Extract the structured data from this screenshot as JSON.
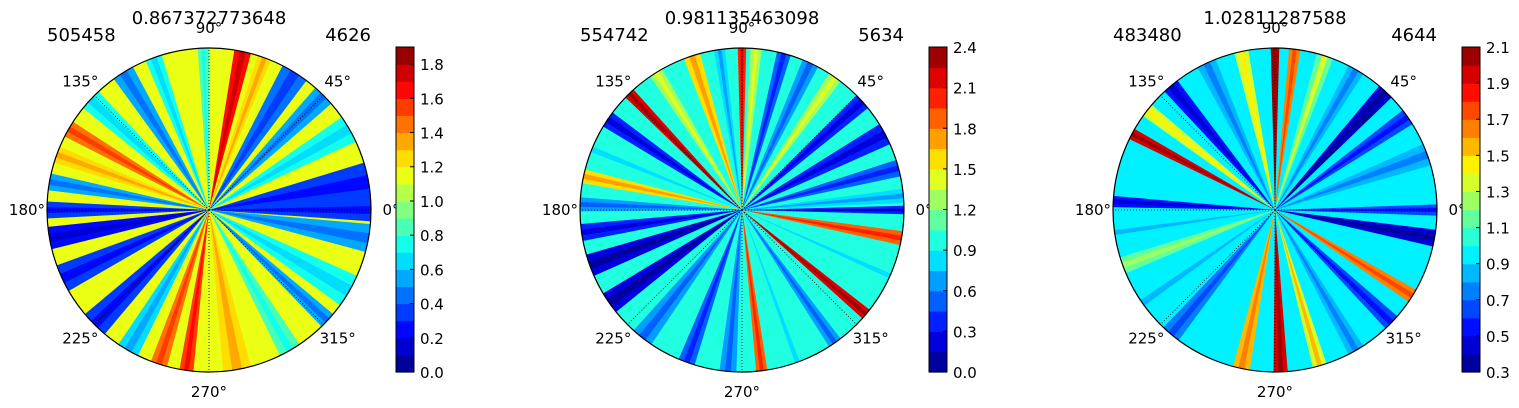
{
  "chart_data": [
    {
      "type": "polar-contour",
      "title": "0.867372773648",
      "left_label": "505458",
      "right_label": "4626",
      "angle_ticks": [
        "0°",
        "45°",
        "90°",
        "135°",
        "180°",
        "225°",
        "270°",
        "315°"
      ],
      "colorbar": {
        "ticks": [
          "0.0",
          "0.2",
          "0.4",
          "0.6",
          "0.8",
          "1.0",
          "1.2",
          "1.4",
          "1.6",
          "1.8"
        ],
        "range": [
          0.0,
          1.9
        ],
        "levels": 19
      },
      "background_value": 1.1,
      "rays": [
        {
          "angle": 92,
          "width": 4,
          "value": 0.8
        },
        {
          "angle": 78,
          "width": 6,
          "value": 1.6
        },
        {
          "angle": 70,
          "width": 5,
          "value": 1.2
        },
        {
          "angle": 58,
          "width": 10,
          "value": 0.45
        },
        {
          "angle": 45,
          "width": 8,
          "value": 0.55
        },
        {
          "angle": 30,
          "width": 10,
          "value": 0.75
        },
        {
          "angle": 10,
          "width": 14,
          "value": 0.3
        },
        {
          "angle": 0,
          "width": 8,
          "value": 0.3
        },
        {
          "angle": 350,
          "width": 10,
          "value": 0.5
        },
        {
          "angle": 330,
          "width": 12,
          "value": 0.7
        },
        {
          "angle": 317,
          "width": 6,
          "value": 0.5
        },
        {
          "angle": 300,
          "width": 8,
          "value": 0.85
        },
        {
          "angle": 280,
          "width": 10,
          "value": 1.2
        },
        {
          "angle": 262,
          "width": 5,
          "value": 1.55
        },
        {
          "angle": 252,
          "width": 6,
          "value": 1.4
        },
        {
          "angle": 240,
          "width": 8,
          "value": 0.6
        },
        {
          "angle": 225,
          "width": 10,
          "value": 0.35
        },
        {
          "angle": 205,
          "width": 10,
          "value": 0.35
        },
        {
          "angle": 190,
          "width": 8,
          "value": 0.25
        },
        {
          "angle": 180,
          "width": 6,
          "value": 0.3
        },
        {
          "angle": 170,
          "width": 6,
          "value": 0.55
        },
        {
          "angle": 160,
          "width": 6,
          "value": 1.2
        },
        {
          "angle": 150,
          "width": 6,
          "value": 1.45
        },
        {
          "angle": 137,
          "width": 8,
          "value": 0.7
        },
        {
          "angle": 122,
          "width": 8,
          "value": 0.5
        },
        {
          "angle": 110,
          "width": 6,
          "value": 0.75
        }
      ]
    },
    {
      "type": "polar-contour",
      "title": "0.981135463098",
      "left_label": "554742",
      "right_label": "5634",
      "angle_ticks": [
        "0°",
        "45°",
        "90°",
        "135°",
        "180°",
        "225°",
        "270°",
        "315°"
      ],
      "colorbar": {
        "ticks": [
          "0.0",
          "0.3",
          "0.6",
          "0.9",
          "1.2",
          "1.5",
          "1.8",
          "2.1",
          "2.4"
        ],
        "range": [
          0.0,
          2.4
        ],
        "levels": 16
      },
      "background_value": 1.0,
      "rays": [
        {
          "angle": 90,
          "width": 3,
          "value": 2.0
        },
        {
          "angle": 85,
          "width": 4,
          "value": 1.3
        },
        {
          "angle": 75,
          "width": 5,
          "value": 0.5
        },
        {
          "angle": 65,
          "width": 6,
          "value": 0.7
        },
        {
          "angle": 55,
          "width": 5,
          "value": 1.2
        },
        {
          "angle": 42,
          "width": 6,
          "value": 0.4
        },
        {
          "angle": 28,
          "width": 8,
          "value": 0.3
        },
        {
          "angle": 15,
          "width": 6,
          "value": 0.45
        },
        {
          "angle": 5,
          "width": 5,
          "value": 0.8
        },
        {
          "angle": 0,
          "width": 3,
          "value": 0.35
        },
        {
          "angle": 350,
          "width": 5,
          "value": 1.9
        },
        {
          "angle": 336,
          "width": 5,
          "value": 0.9
        },
        {
          "angle": 320,
          "width": 4,
          "value": 2.1
        },
        {
          "angle": 305,
          "width": 5,
          "value": 0.6
        },
        {
          "angle": 290,
          "width": 5,
          "value": 0.9
        },
        {
          "angle": 277,
          "width": 4,
          "value": 1.9
        },
        {
          "angle": 265,
          "width": 6,
          "value": 0.7
        },
        {
          "angle": 250,
          "width": 6,
          "value": 0.45
        },
        {
          "angle": 232,
          "width": 8,
          "value": 0.7
        },
        {
          "angle": 215,
          "width": 8,
          "value": 0.25
        },
        {
          "angle": 200,
          "width": 8,
          "value": 0.15
        },
        {
          "angle": 188,
          "width": 6,
          "value": 0.3
        },
        {
          "angle": 178,
          "width": 5,
          "value": 0.6
        },
        {
          "angle": 168,
          "width": 5,
          "value": 1.6
        },
        {
          "angle": 158,
          "width": 6,
          "value": 0.9
        },
        {
          "angle": 146,
          "width": 6,
          "value": 0.3
        },
        {
          "angle": 134,
          "width": 4,
          "value": 2.1
        },
        {
          "angle": 122,
          "width": 5,
          "value": 1.2
        },
        {
          "angle": 108,
          "width": 6,
          "value": 1.5
        },
        {
          "angle": 98,
          "width": 4,
          "value": 0.8
        }
      ]
    },
    {
      "type": "polar-contour",
      "title": "1.02811287588",
      "left_label": "483480",
      "right_label": "4644",
      "angle_ticks": [
        "0°",
        "45°",
        "90°",
        "135°",
        "180°",
        "225°",
        "270°",
        "315°"
      ],
      "colorbar": {
        "ticks": [
          "0.3",
          "0.5",
          "0.7",
          "0.9",
          "1.1",
          "1.3",
          "1.5",
          "1.7",
          "1.9",
          "2.1"
        ],
        "range": [
          0.3,
          2.1
        ],
        "levels": 18
      },
      "background_value": 1.0,
      "rays": [
        {
          "angle": 90,
          "width": 3,
          "value": 2.0
        },
        {
          "angle": 83,
          "width": 4,
          "value": 1.7
        },
        {
          "angle": 72,
          "width": 6,
          "value": 1.2
        },
        {
          "angle": 60,
          "width": 6,
          "value": 0.8
        },
        {
          "angle": 47,
          "width": 6,
          "value": 0.45
        },
        {
          "angle": 35,
          "width": 6,
          "value": 0.65
        },
        {
          "angle": 20,
          "width": 8,
          "value": 0.85
        },
        {
          "angle": 8,
          "width": 6,
          "value": 1.0
        },
        {
          "angle": 0,
          "width": 4,
          "value": 0.6
        },
        {
          "angle": 350,
          "width": 6,
          "value": 0.45
        },
        {
          "angle": 338,
          "width": 6,
          "value": 1.0
        },
        {
          "angle": 328,
          "width": 5,
          "value": 1.7
        },
        {
          "angle": 316,
          "width": 6,
          "value": 0.6
        },
        {
          "angle": 300,
          "width": 6,
          "value": 0.8
        },
        {
          "angle": 286,
          "width": 5,
          "value": 1.4
        },
        {
          "angle": 272,
          "width": 5,
          "value": 1.95
        },
        {
          "angle": 258,
          "width": 6,
          "value": 1.5
        },
        {
          "angle": 245,
          "width": 6,
          "value": 1.0
        },
        {
          "angle": 230,
          "width": 7,
          "value": 0.7
        },
        {
          "angle": 215,
          "width": 7,
          "value": 0.9
        },
        {
          "angle": 200,
          "width": 6,
          "value": 1.15
        },
        {
          "angle": 188,
          "width": 5,
          "value": 0.9
        },
        {
          "angle": 177,
          "width": 4,
          "value": 0.5
        },
        {
          "angle": 166,
          "width": 5,
          "value": 1.0
        },
        {
          "angle": 152,
          "width": 4,
          "value": 1.9
        },
        {
          "angle": 142,
          "width": 5,
          "value": 1.3
        },
        {
          "angle": 130,
          "width": 6,
          "value": 0.5
        },
        {
          "angle": 115,
          "width": 7,
          "value": 0.8
        },
        {
          "angle": 102,
          "width": 5,
          "value": 1.3
        }
      ]
    }
  ]
}
